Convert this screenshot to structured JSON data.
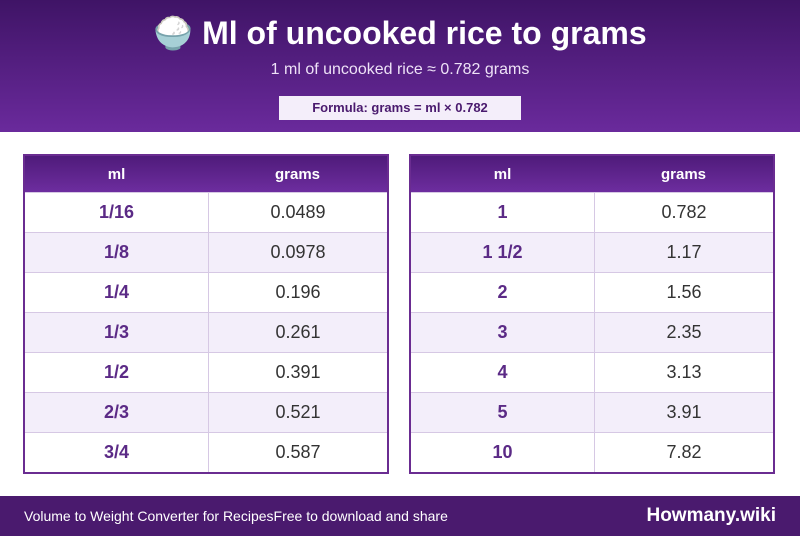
{
  "header": {
    "title": "🍚 Ml of uncooked rice to grams",
    "subtitle": "1 ml of uncooked rice ≈ 0.782 grams",
    "formula": "Formula: grams = ml × 0.782"
  },
  "tables": [
    {
      "columns": [
        "ml",
        "grams"
      ],
      "rows": [
        [
          "1/16",
          0.0489
        ],
        [
          "1/8",
          0.0978
        ],
        [
          "1/4",
          0.196
        ],
        [
          "1/3",
          0.261
        ],
        [
          "1/2",
          0.391
        ],
        [
          "2/3",
          0.521
        ],
        [
          "3/4",
          0.587
        ]
      ]
    },
    {
      "columns": [
        "ml",
        "grams"
      ],
      "rows": [
        [
          1,
          0.782
        ],
        [
          "1 1/2",
          1.17
        ],
        [
          2,
          1.56
        ],
        [
          3,
          2.35
        ],
        [
          4,
          3.13
        ],
        [
          5,
          3.91
        ],
        [
          10,
          7.82
        ]
      ]
    }
  ],
  "footer": {
    "left": "Volume to Weight Converter for Recipes",
    "middle": "Free to download and share",
    "brand": "Howmany.wiki"
  }
}
